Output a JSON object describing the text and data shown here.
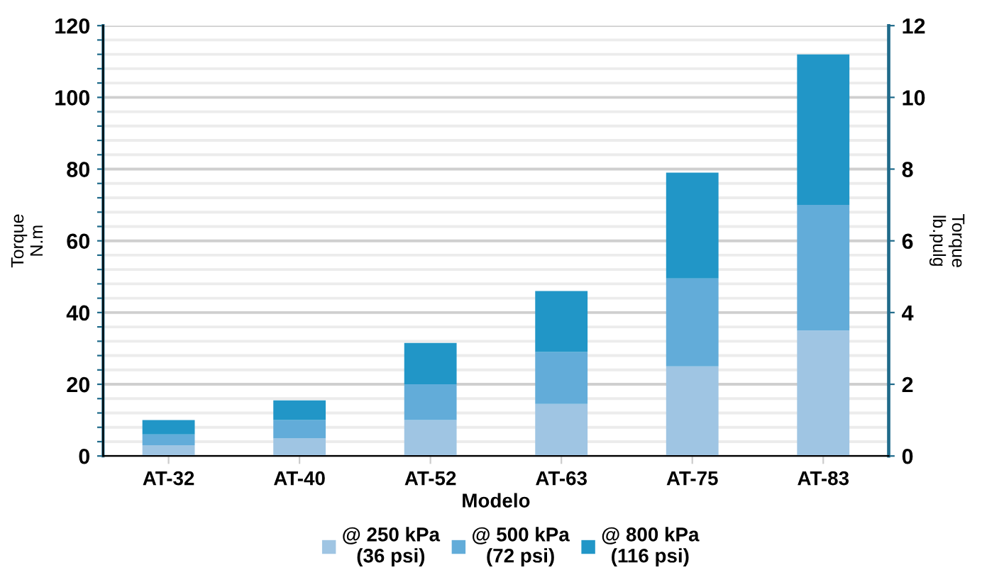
{
  "chart_data": {
    "type": "bar",
    "stacked": true,
    "xlabel": "Modelo",
    "ylabel": "Torque\nN.m",
    "y2label": "Torque\nlb.pulg",
    "categories": [
      "AT-32",
      "AT-40",
      "AT-52",
      "AT-63",
      "AT-75",
      "AT-83"
    ],
    "series": [
      {
        "name": "@ 250 kPa\n(36 psi)",
        "color": "#9fc5e3",
        "values": [
          3,
          5,
          10,
          14.5,
          25,
          35
        ]
      },
      {
        "name": "@ 500 kPa\n(72 psi)",
        "color": "#62acd9",
        "values": [
          3,
          5,
          10,
          14.5,
          24.5,
          35
        ]
      },
      {
        "name": "@ 800 kPa\n(116 psi)",
        "color": "#2196c7",
        "values": [
          4,
          5.5,
          11.5,
          17,
          29.5,
          42
        ]
      }
    ],
    "ylim": [
      0,
      120
    ],
    "yticks": [
      0,
      {
        "value": 4,
        "label": null
      },
      {
        "value": 8,
        "label": null
      },
      {
        "value": 12,
        "label": null
      },
      {
        "value": 16,
        "label": null
      },
      20,
      {
        "value": 24,
        "label": null
      },
      {
        "value": 28,
        "label": null
      },
      {
        "value": 32,
        "label": null
      },
      {
        "value": 36,
        "label": null
      },
      40,
      {
        "value": 44,
        "label": null
      },
      {
        "value": 48,
        "label": null
      },
      {
        "value": 52,
        "label": null
      },
      {
        "value": 56,
        "label": null
      },
      60,
      {
        "value": 64,
        "label": null
      },
      {
        "value": 68,
        "label": null
      },
      {
        "value": 72,
        "label": null
      },
      {
        "value": 76,
        "label": null
      },
      80,
      {
        "value": 84,
        "label": null
      },
      {
        "value": 88,
        "label": null
      },
      {
        "value": 92,
        "label": null
      },
      {
        "value": 96,
        "label": null
      },
      100,
      {
        "value": 104,
        "label": null
      },
      {
        "value": 108,
        "label": null
      },
      {
        "value": 112,
        "label": null
      },
      {
        "value": 116,
        "label": null
      },
      120
    ],
    "y2lim": [
      0,
      12
    ],
    "y2ticks": [
      0,
      2,
      4,
      6,
      8,
      10,
      12
    ],
    "grid": "y",
    "legend": "bottom"
  }
}
